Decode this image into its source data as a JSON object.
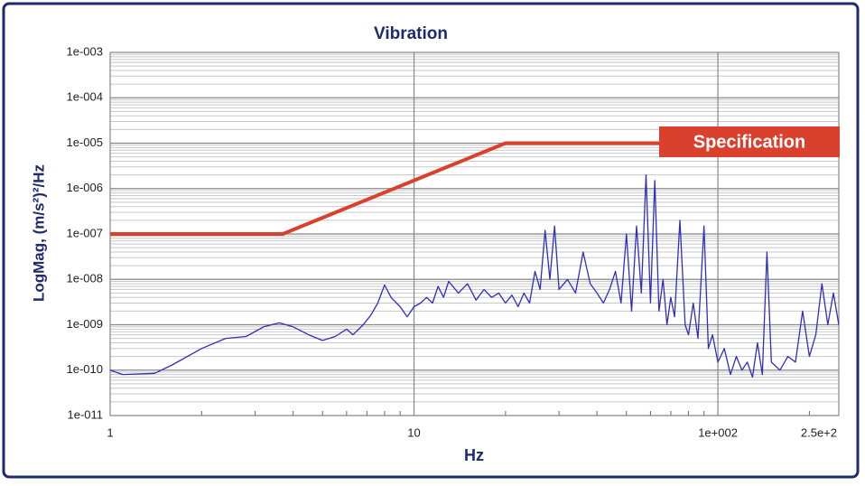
{
  "chart_data": {
    "type": "line",
    "title": "Vibration",
    "xlabel": "Hz",
    "ylabel": "LogMag, (m/s²)²/Hz",
    "xscale": "log",
    "yscale": "log",
    "grid": true,
    "xlim": [
      1,
      250
    ],
    "ylim": [
      1e-11,
      0.001
    ],
    "xticks": [
      1,
      10,
      {
        "value": 100,
        "label": "1e+002"
      },
      {
        "value": 250,
        "label": "2.5e+2"
      }
    ],
    "yticks": [
      {
        "value": 1e-11,
        "label": "1e-011"
      },
      {
        "value": 1e-10,
        "label": "1e-010"
      },
      {
        "value": 1e-09,
        "label": "1e-009"
      },
      {
        "value": 1e-08,
        "label": "1e-008"
      },
      {
        "value": 1e-07,
        "label": "1e-007"
      },
      {
        "value": 1e-06,
        "label": "1e-006"
      },
      {
        "value": 1e-05,
        "label": "1e-005"
      },
      {
        "value": 0.0001,
        "label": "1e-004"
      },
      {
        "value": 0.001,
        "label": "1e-003"
      }
    ],
    "series": [
      {
        "name": "Specification",
        "color": "#d9412e",
        "x": [
          1,
          3.7,
          20,
          250
        ],
        "values": [
          1e-07,
          1e-07,
          1e-05,
          1e-05
        ]
      },
      {
        "color": "#2f2fbf",
        "x": [
          1,
          1.1,
          1.4,
          1.6,
          2,
          2.4,
          2.8,
          3.2,
          3.6,
          4,
          4.5,
          5,
          5.5,
          6,
          6.3,
          6.8,
          7.2,
          7.6,
          8,
          8.4,
          9,
          9.5,
          10,
          10.5,
          11,
          11.5,
          12,
          12.5,
          13,
          14,
          15,
          16,
          17,
          18,
          19,
          20,
          21,
          22,
          23,
          24,
          25,
          26,
          27,
          28,
          29,
          30,
          32,
          34,
          36,
          38,
          40,
          42,
          44,
          46,
          48,
          50,
          52,
          54,
          56,
          58,
          60,
          62,
          64,
          66,
          68,
          70,
          72,
          75,
          78,
          80,
          83,
          86,
          90,
          93,
          96,
          100,
          105,
          110,
          115,
          120,
          125,
          130,
          135,
          140,
          145,
          150,
          160,
          170,
          180,
          190,
          200,
          210,
          220,
          230,
          240,
          250
        ],
        "values": [
          1e-10,
          8e-11,
          8.5e-11,
          1.3e-10,
          3e-10,
          5e-10,
          5.5e-10,
          9e-10,
          1.1e-09,
          9e-10,
          6e-10,
          4.5e-10,
          5.5e-10,
          8e-10,
          6e-10,
          1e-09,
          1.6e-09,
          3e-09,
          7.5e-09,
          4e-09,
          2.5e-09,
          1.5e-09,
          2.5e-09,
          3e-09,
          4e-09,
          3e-09,
          7e-09,
          4e-09,
          9e-09,
          5e-09,
          8e-09,
          3.5e-09,
          6e-09,
          4e-09,
          5e-09,
          3e-09,
          4.5e-09,
          2.5e-09,
          5e-09,
          3e-09,
          1.5e-08,
          6e-09,
          1.2e-07,
          1e-08,
          1.5e-07,
          6e-09,
          1e-08,
          5e-09,
          4e-08,
          8e-09,
          5e-09,
          3e-09,
          6e-09,
          1.5e-08,
          3e-09,
          1e-07,
          2e-09,
          1.5e-07,
          5e-09,
          2e-06,
          3e-09,
          1.5e-06,
          2e-09,
          1e-08,
          1e-09,
          4e-09,
          1.5e-09,
          2e-07,
          1e-09,
          6e-10,
          3e-09,
          5e-10,
          1.5e-07,
          3e-10,
          6e-10,
          1.5e-10,
          3e-10,
          8e-11,
          2e-10,
          1e-10,
          1.5e-10,
          7e-11,
          4e-10,
          8e-11,
          4e-08,
          1.5e-10,
          1e-10,
          2e-10,
          1.5e-10,
          2e-09,
          2e-10,
          6e-10,
          8e-09,
          1e-09,
          5e-09,
          1e-09
        ]
      }
    ]
  }
}
